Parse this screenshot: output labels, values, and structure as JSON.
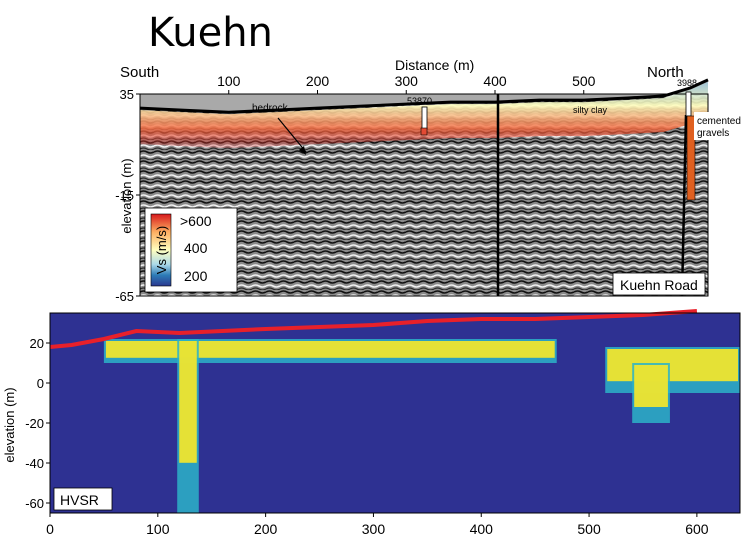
{
  "title": "Kuehn",
  "chart_data": [
    {
      "type": "heatmap",
      "panel": "seismic",
      "direction_left": "South",
      "direction_right": "North",
      "xlabel": "Distance (m)",
      "ylabel": "elevation (m)",
      "x_ticks": [
        "100",
        "200",
        "300",
        "400",
        "500"
      ],
      "y_ticks": [
        "35",
        "-15",
        "-65"
      ],
      "xlim": [
        0,
        640
      ],
      "ylim": [
        -65,
        35
      ],
      "annotations": {
        "bedrock": "bedrock",
        "silty_clay": "silty clay",
        "well_1": "53870",
        "well_2": "3988",
        "cemented_gravels": "cemented gravels",
        "road": "Kuehn Road"
      },
      "well_positions_m": [
        300,
        590
      ],
      "colorbar": {
        "label": "Vs (m/s)",
        "ticks": [
          ">600",
          "400",
          "200"
        ],
        "colors": [
          "#d7191c",
          "#fdae61",
          "#ffffbf",
          "#abd9e9",
          "#2c7bb6",
          "#2b3990"
        ]
      },
      "surface_profile": {
        "x": [
          0,
          50,
          100,
          150,
          200,
          250,
          300,
          350,
          400,
          450,
          500,
          550,
          590,
          620,
          640
        ],
        "y": [
          28,
          27,
          26,
          27,
          28,
          29,
          30,
          31,
          31,
          32,
          32,
          33,
          34,
          38,
          42
        ]
      }
    },
    {
      "type": "heatmap",
      "panel": "hvsr",
      "label": "HVSR",
      "ylabel": "elevation (m)",
      "x_ticks": [
        "0",
        "100",
        "200",
        "300",
        "400",
        "500",
        "600"
      ],
      "y_ticks": [
        "20",
        "0",
        "-20",
        "-40",
        "-60"
      ],
      "xlim": [
        0,
        640
      ],
      "ylim": [
        -65,
        35
      ],
      "surface_line_color": "#e8202a",
      "background_color": "#2e3192",
      "surface_profile": {
        "x": [
          0,
          20,
          50,
          80,
          120,
          160,
          200,
          250,
          300,
          350,
          400,
          450,
          500,
          550,
          600
        ],
        "y": [
          18,
          19,
          22,
          26,
          25,
          26,
          27,
          28,
          29,
          31,
          32,
          32,
          33,
          34,
          36
        ]
      },
      "high_zones": [
        {
          "x_start": 50,
          "x_end": 470,
          "top": 22,
          "bottom": 10
        },
        {
          "x_start": 118,
          "x_end": 138,
          "top": 22,
          "bottom": -65
        },
        {
          "x_start": 515,
          "x_end": 640,
          "top": 18,
          "bottom": -5
        },
        {
          "x_start": 540,
          "x_end": 575,
          "top": 10,
          "bottom": -20
        }
      ]
    }
  ]
}
